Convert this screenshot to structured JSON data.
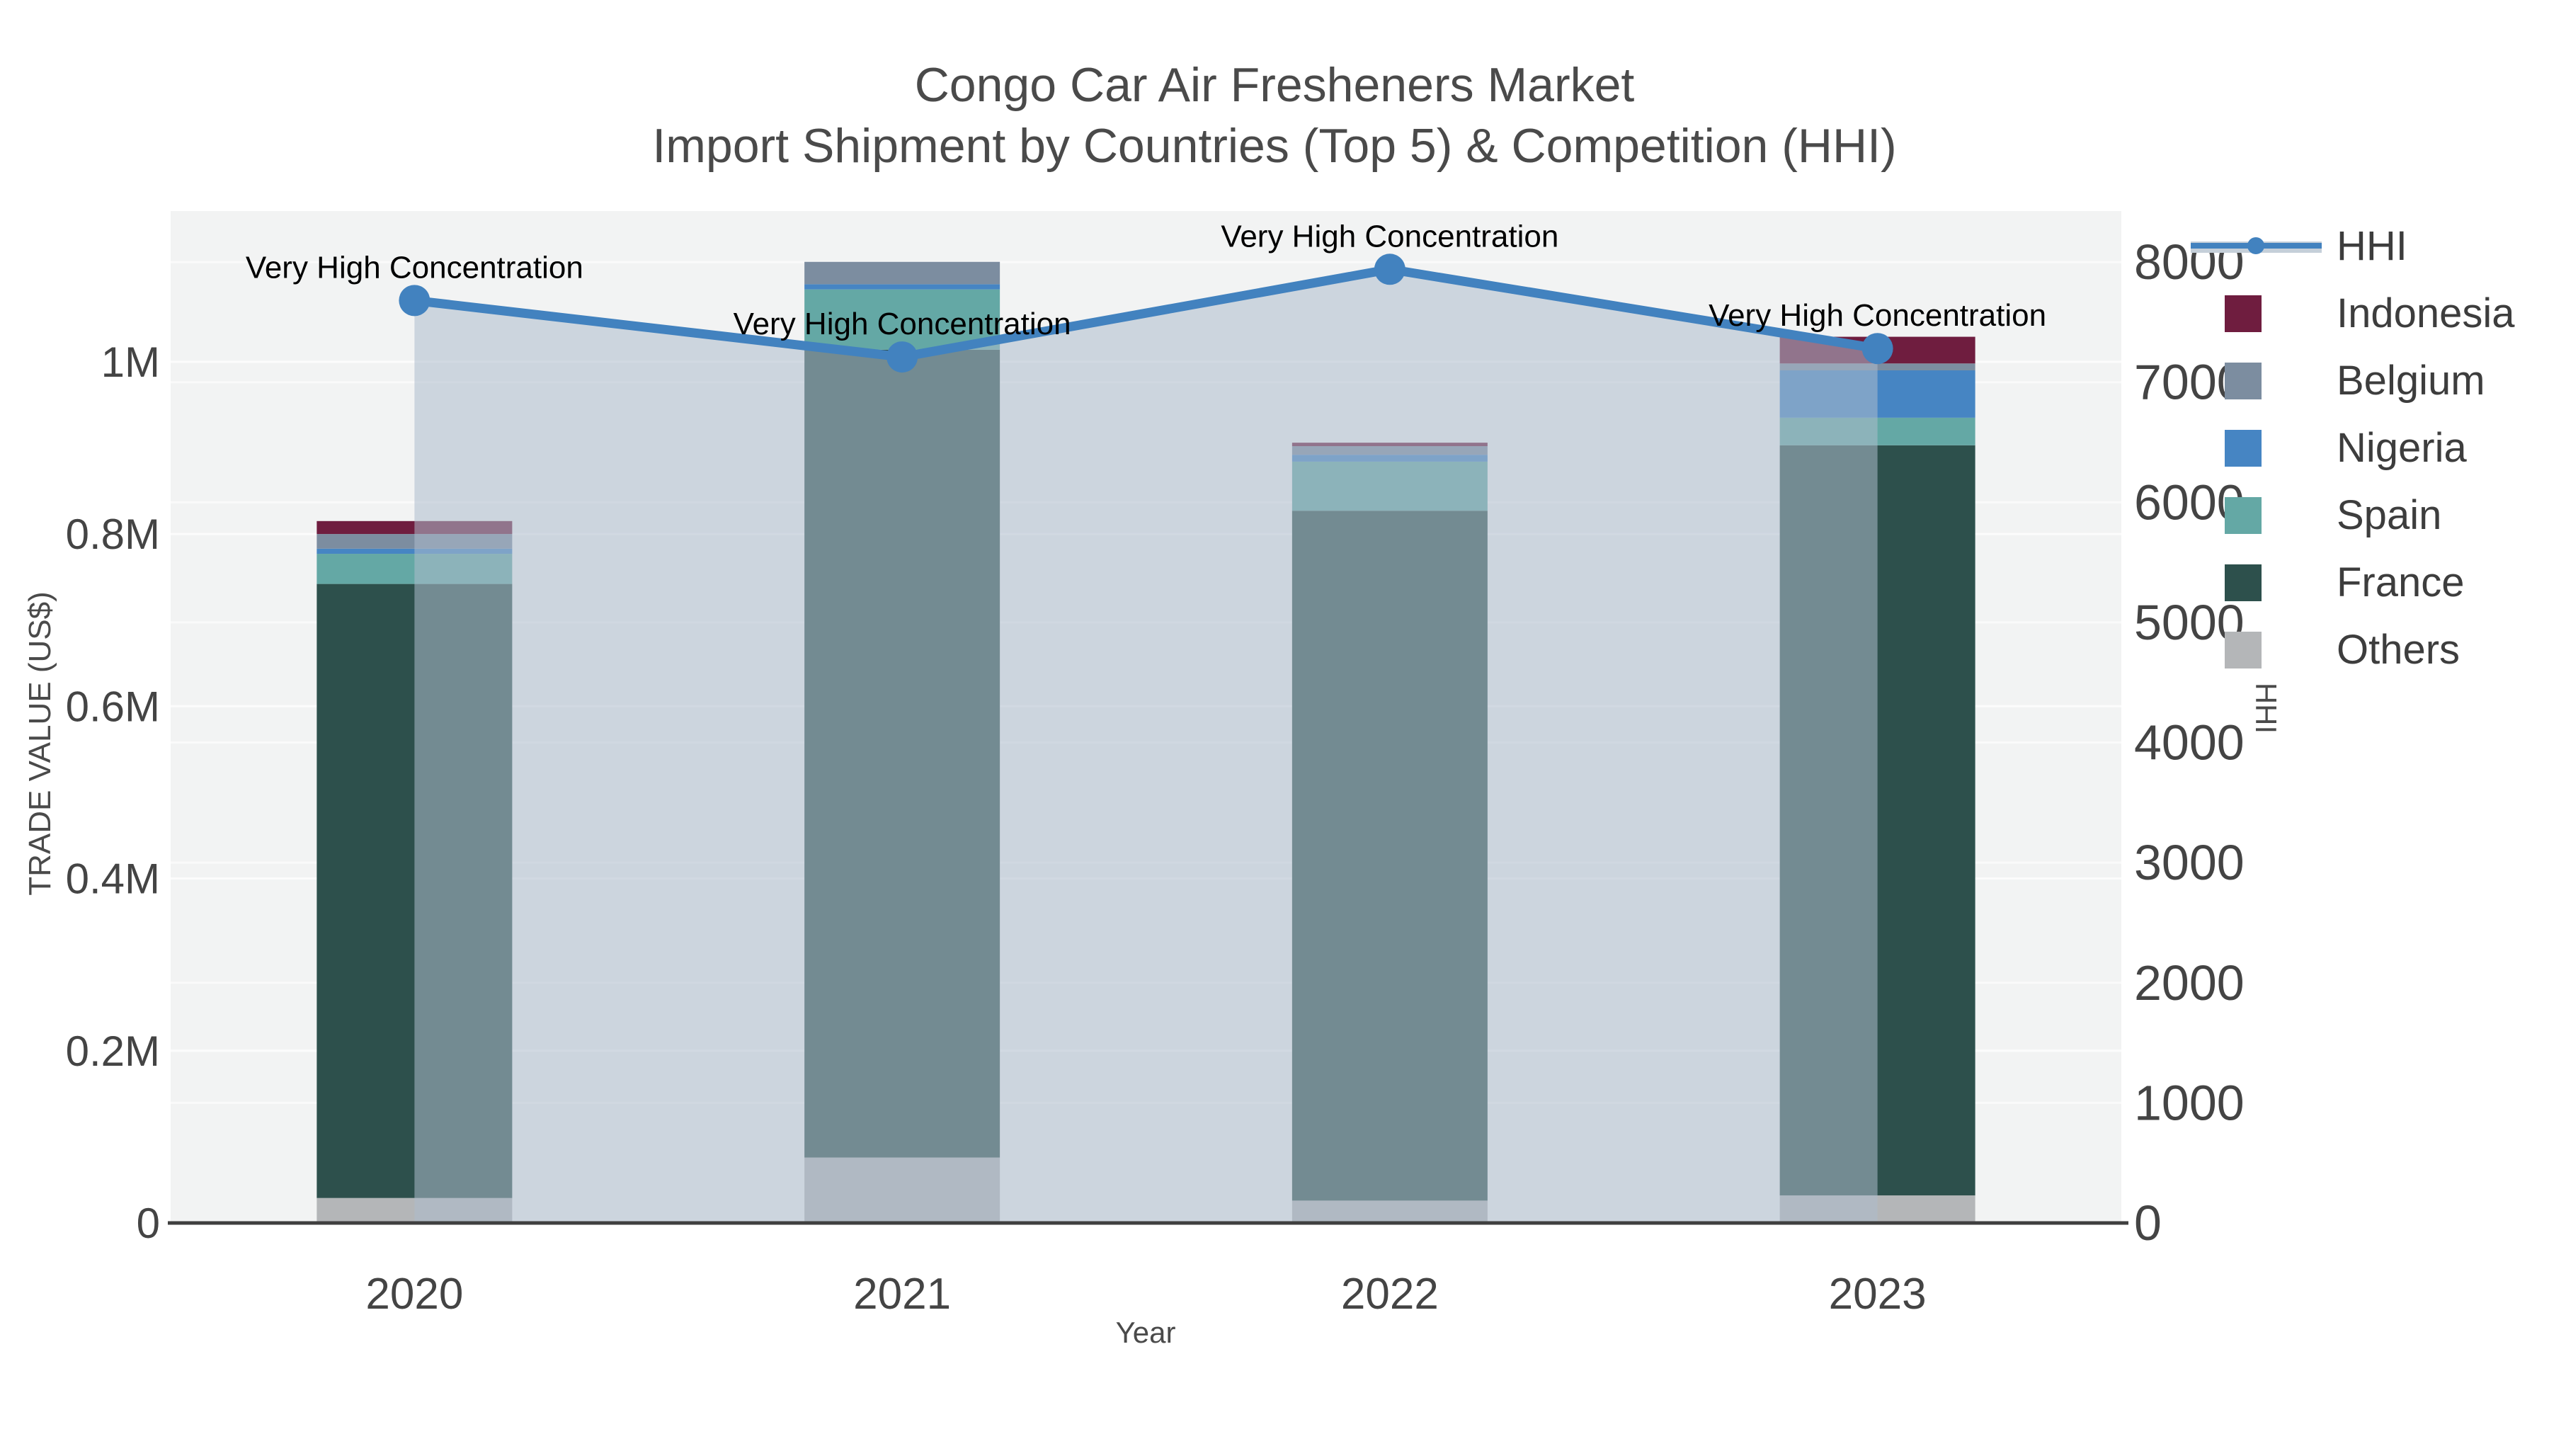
{
  "chart_data": {
    "type": "combo_stacked_bar_line",
    "title": {
      "line1": "Congo Car Air Fresheners Market",
      "line2": "Import Shipment by Countries (Top 5) & Competition (HHI)"
    },
    "categories": [
      "2020",
      "2021",
      "2022",
      "2023"
    ],
    "xlabel": "Year",
    "y_left": {
      "label": "TRADE VALUE (US$)",
      "range": [
        0,
        1175000
      ],
      "ticks": [
        {
          "value": 0,
          "label": "0"
        },
        {
          "value": 200000,
          "label": "0.2M"
        },
        {
          "value": 400000,
          "label": "0.4M"
        },
        {
          "value": 600000,
          "label": "0.6M"
        },
        {
          "value": 800000,
          "label": "0.8M"
        },
        {
          "value": 1000000,
          "label": "1M"
        }
      ]
    },
    "y_right": {
      "label": "HHI",
      "range": [
        0,
        8425
      ],
      "ticks": [
        {
          "value": 0,
          "label": "0"
        },
        {
          "value": 1000,
          "label": "1000"
        },
        {
          "value": 2000,
          "label": "2000"
        },
        {
          "value": 3000,
          "label": "3000"
        },
        {
          "value": 4000,
          "label": "4000"
        },
        {
          "value": 5000,
          "label": "5000"
        },
        {
          "value": 6000,
          "label": "6000"
        },
        {
          "value": 7000,
          "label": "7000"
        },
        {
          "value": 8000,
          "label": "8000"
        }
      ]
    },
    "bar_series": [
      {
        "name": "Others",
        "color": "#b4b6b8",
        "values": [
          29000,
          76000,
          26000,
          32000
        ]
      },
      {
        "name": "France",
        "color": "#2d504c",
        "values": [
          713000,
          938000,
          801000,
          871000
        ]
      },
      {
        "name": "Spain",
        "color": "#64a8a5",
        "values": [
          35000,
          70000,
          57000,
          32000
        ]
      },
      {
        "name": "Nigeria",
        "color": "#4685c3",
        "values": [
          6000,
          6000,
          8000,
          55000
        ]
      },
      {
        "name": "Belgium",
        "color": "#7c8da0",
        "values": [
          17000,
          26000,
          10000,
          8000
        ]
      },
      {
        "name": "Indonesia",
        "color": "#6f1d3f",
        "values": [
          15000,
          0,
          4000,
          31000
        ]
      }
    ],
    "bar_totals": [
      815000,
      1116000,
      906000,
      1029000
    ],
    "line_series": {
      "name": "HHI",
      "color": "#4282bf",
      "fill_color": "rgba(173,187,204,0.55)",
      "values": [
        7680,
        7210,
        7940,
        7280
      ]
    },
    "annotations": [
      {
        "category": "2020",
        "text": "Very High Concentration"
      },
      {
        "category": "2021",
        "text": "Very High Concentration"
      },
      {
        "category": "2022",
        "text": "Very High Concentration"
      },
      {
        "category": "2023",
        "text": "Very High Concentration"
      }
    ],
    "legend_order": [
      "HHI",
      "Indonesia",
      "Belgium",
      "Nigeria",
      "Spain",
      "France",
      "Others"
    ],
    "style": {
      "plot_bg": "#f2f3f3",
      "grid_color": "#ffffff",
      "axis_line_color": "#3f3f3f",
      "tick_color": "#444444",
      "annotation_color": "#000000"
    }
  }
}
